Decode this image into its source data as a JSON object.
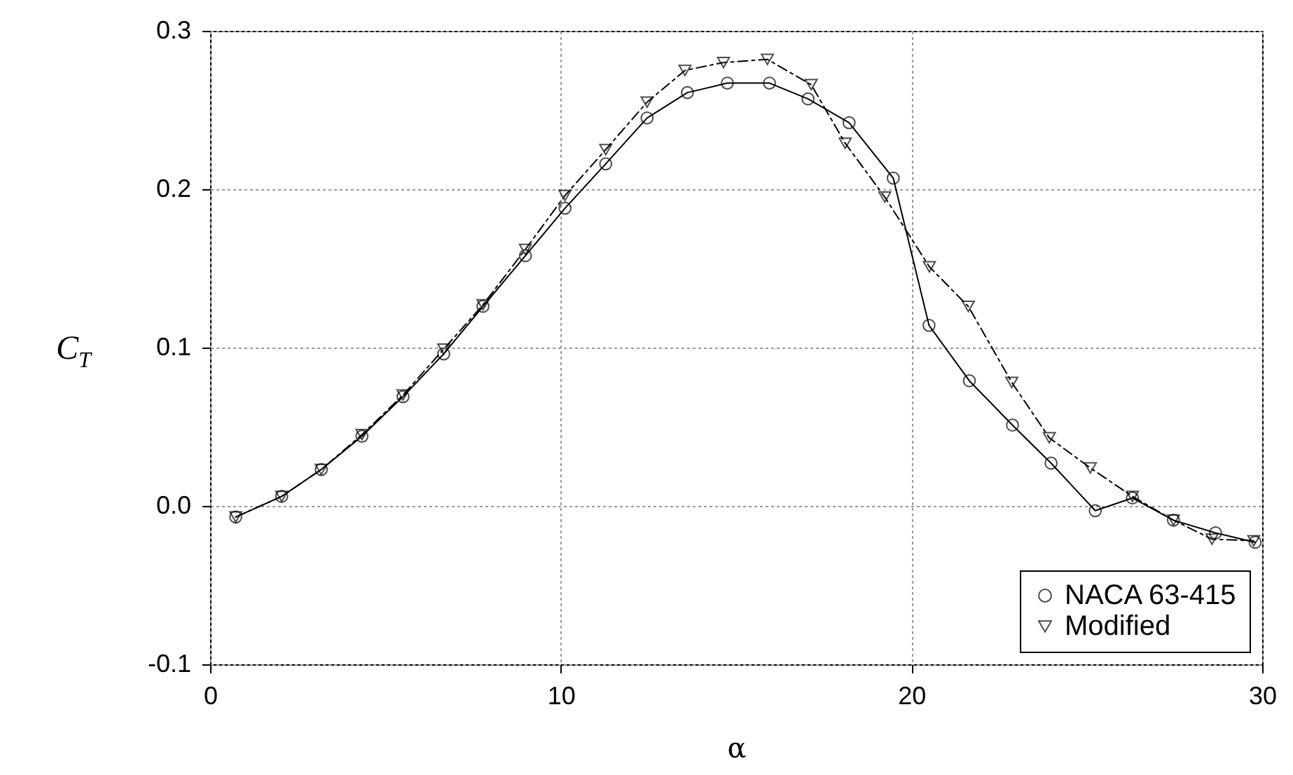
{
  "chart_data": {
    "type": "line",
    "xlabel": "α",
    "ylabel": "C$_{T}$",
    "xlim": [
      0,
      30
    ],
    "xticks": [
      0,
      10,
      20,
      30
    ],
    "ylim": [
      -0.1,
      0.3
    ],
    "yticks": [
      {
        "value": -0.1,
        "label": "-0.1"
      },
      {
        "value": 0,
        "label": "0.0"
      },
      {
        "value": 0.1,
        "label": "0.1"
      },
      {
        "value": 0.2,
        "label": "0.2"
      },
      {
        "value": 0.3,
        "label": "0.3"
      }
    ],
    "grid": true,
    "legend": "bottom right",
    "series": [
      {
        "name": "NACA 63-415",
        "color": "#000000",
        "marker": "circle",
        "line_style": "solid",
        "x": [
          0.73,
          2.04,
          3.17,
          4.33,
          5.5,
          6.66,
          7.78,
          8.99,
          10.12,
          11.28,
          12.46,
          13.61,
          14.75,
          15.95,
          17.05,
          18.22,
          19.48,
          20.5,
          21.65,
          22.88,
          23.98,
          25.24,
          26.3,
          27.47,
          28.67,
          29.8
        ],
        "values": [
          -0.007,
          0.006,
          0.023,
          0.044,
          0.069,
          0.096,
          0.126,
          0.158,
          0.188,
          0.216,
          0.245,
          0.261,
          0.267,
          0.267,
          0.257,
          0.242,
          0.207,
          0.114,
          0.079,
          0.051,
          0.027,
          -0.003,
          0.005,
          -0.009,
          -0.017,
          -0.023
        ]
      },
      {
        "name": "Modified",
        "color": "#000000",
        "marker": "triangle",
        "line_style": "dashed",
        "x": [
          0.73,
          2.04,
          3.17,
          4.33,
          5.5,
          6.66,
          7.78,
          8.99,
          10.12,
          11.28,
          12.46,
          13.54,
          14.64,
          15.89,
          17.14,
          18.11,
          19.24,
          20.51,
          21.62,
          22.86,
          23.93,
          25.1,
          26.3,
          27.47,
          28.57,
          29.76
        ],
        "values": [
          -0.007,
          0.006,
          0.023,
          0.045,
          0.07,
          0.099,
          0.127,
          0.162,
          0.196,
          0.225,
          0.255,
          0.275,
          0.28,
          0.282,
          0.266,
          0.229,
          0.195,
          0.151,
          0.126,
          0.078,
          0.043,
          0.024,
          0.006,
          -0.009,
          -0.021,
          -0.022
        ]
      }
    ]
  }
}
